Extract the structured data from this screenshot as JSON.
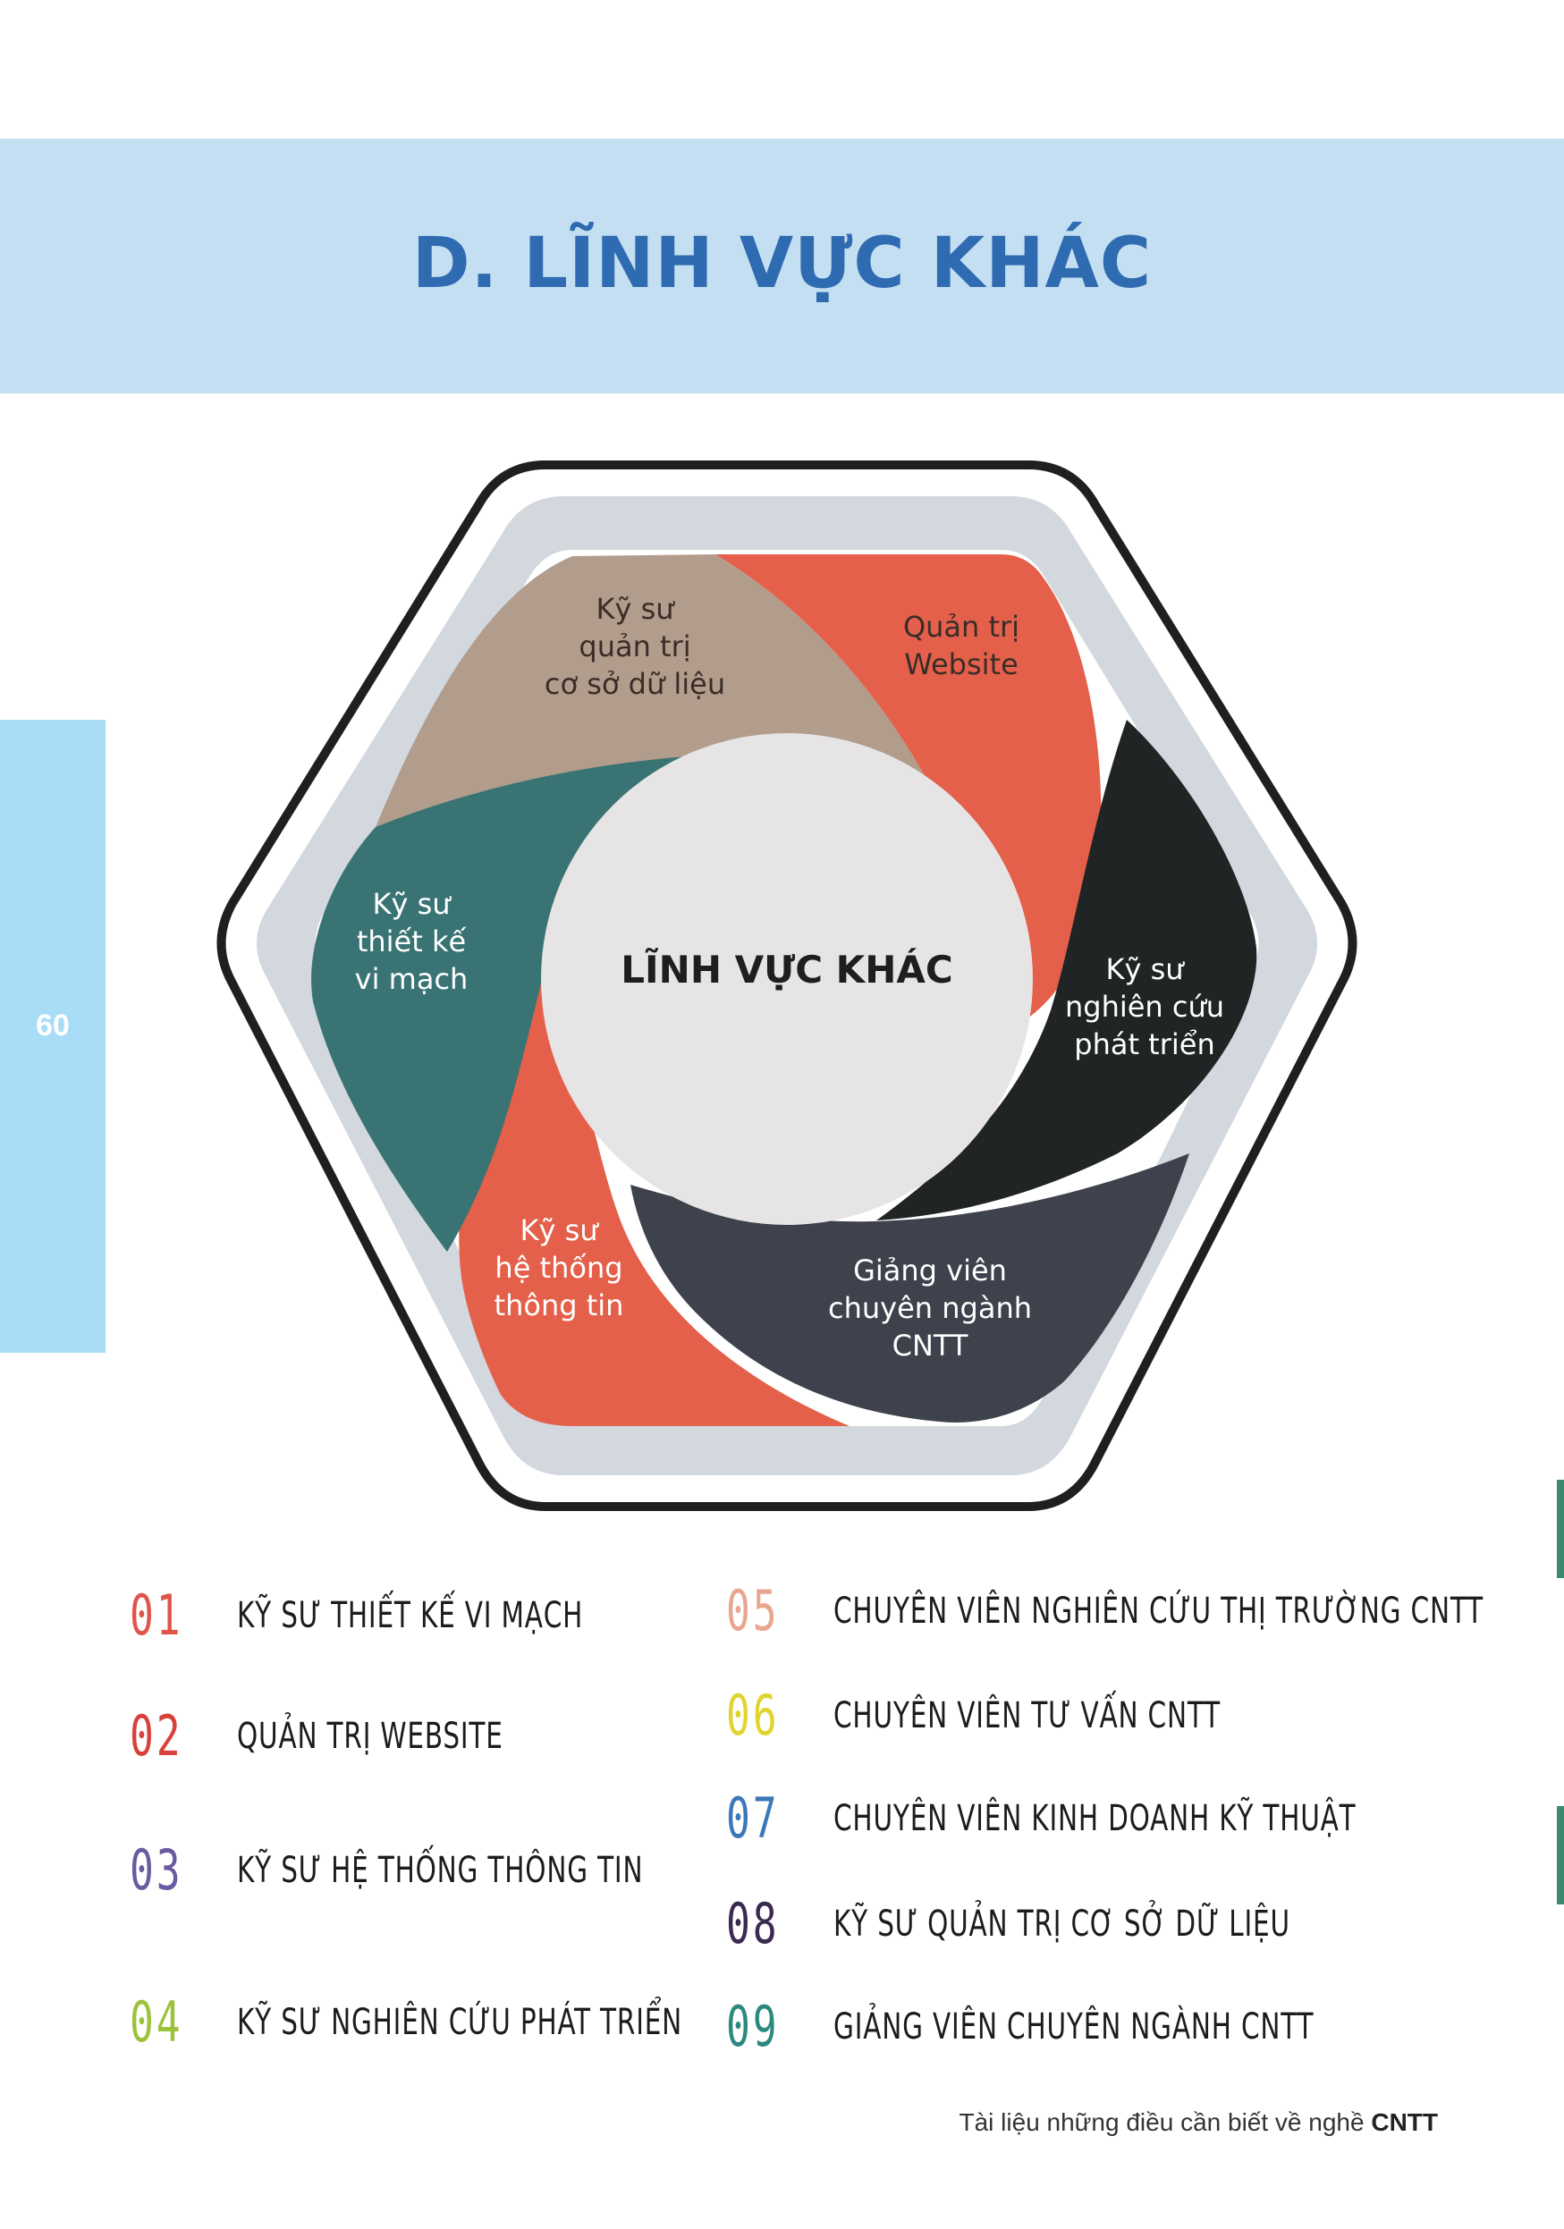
{
  "header": {
    "title": "D. LĨNH VỰC KHÁC"
  },
  "page_number": "60",
  "diagram": {
    "center_label": "LĨNH VỰC KHÁC",
    "segments": [
      {
        "label": "Kỹ sư\nquản trị\ncơ sở dữ liệu",
        "color": "#b29c8c"
      },
      {
        "label": "Quản trị\nWebsite",
        "color": "#e4604a"
      },
      {
        "label": "Kỹ sư\nnghiên cứu\nphát triển",
        "color": "#202424"
      },
      {
        "label": "Giảng viên\nchuyên ngành\nCNTT",
        "color": "#3e424c"
      },
      {
        "label": "Kỹ sư\nhệ thống\nthông tin",
        "color": "#e4604a"
      },
      {
        "label": "Kỹ sư\nthiết kế\nvi mạch",
        "color": "#3a7373"
      }
    ]
  },
  "list_left": [
    {
      "num": "01",
      "text": "KỸ SƯ THIẾT KẾ VI MẠCH",
      "color": "#e0544a"
    },
    {
      "num": "02",
      "text": "QUẢN TRỊ WEBSITE",
      "color": "#d8403a"
    },
    {
      "num": "03",
      "text": "KỸ SƯ HỆ THỐNG THÔNG TIN",
      "color": "#6a5aa0"
    },
    {
      "num": "04",
      "text": "KỸ SƯ NGHIÊN CỨU PHÁT TRIỂN",
      "color": "#9cc23c"
    }
  ],
  "list_right": [
    {
      "num": "05",
      "text": "CHUYÊN VIÊN NGHIÊN CỨU THỊ TRƯỜNG CNTT",
      "color": "#e8a690"
    },
    {
      "num": "06",
      "text": "CHUYÊN VIÊN TƯ VẤN CNTT",
      "color": "#e2d430"
    },
    {
      "num": "07",
      "text": "CHUYÊN VIÊN KINH DOANH KỸ THUẬT",
      "color": "#3a78b8"
    },
    {
      "num": "08",
      "text": "KỸ SƯ QUẢN TRỊ CƠ SỞ DỮ LIỆU",
      "color": "#3a2a50"
    },
    {
      "num": "09",
      "text": "GIẢNG VIÊN CHUYÊN NGÀNH CNTT",
      "color": "#2a8a80"
    }
  ],
  "footer": {
    "text": "Tài liệu những điều cần biết về nghề",
    "bold": "CNTT"
  }
}
